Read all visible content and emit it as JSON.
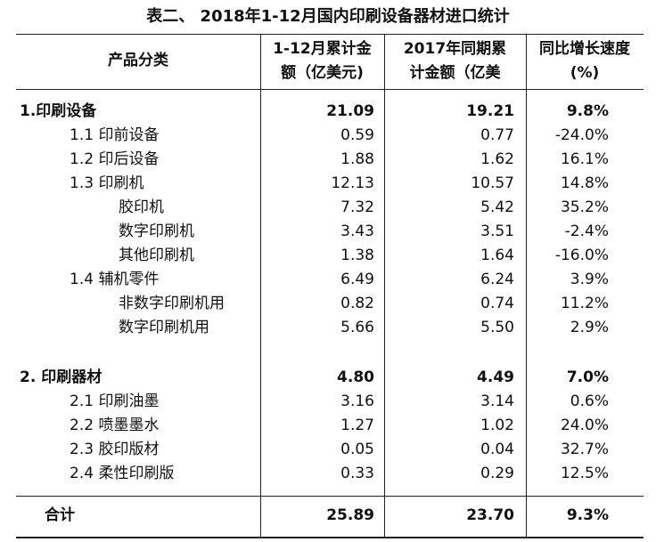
{
  "header": {
    "title": "表二、 2018年1-12月国内印刷设备器材进口统计"
  },
  "table": {
    "columns": [
      [
        "产品分类"
      ],
      [
        "1-12月累计金",
        "额（亿美元)"
      ],
      [
        "2017年同期累",
        "计金额（亿美"
      ],
      [
        "同比增长速度",
        "(%)"
      ]
    ],
    "rows": [
      [
        "1.印刷设备",
        "21.09",
        "19.21",
        "9.8%"
      ],
      [
        "1.1 印前设备",
        "0.59",
        "0.77",
        "-24.0%"
      ],
      [
        "1.2 印后设备",
        "1.88",
        "1.62",
        "16.1%"
      ],
      [
        "1.3 印刷机",
        "12.13",
        "10.57",
        "14.8%"
      ],
      [
        "胶印机",
        "7.32",
        "5.42",
        "35.2%"
      ],
      [
        "数字印刷机",
        "3.43",
        "3.51",
        "-2.4%"
      ],
      [
        "其他印刷机",
        "1.38",
        "1.64",
        "-16.0%"
      ],
      [
        "1.4  辅机零件",
        "6.49",
        "6.24",
        "3.9%"
      ],
      [
        "非数字印刷机用",
        "0.82",
        "0.74",
        "11.2%"
      ],
      [
        "数字印刷机用",
        "5.66",
        "5.50",
        "2.9%"
      ],
      [
        "2. 印刷器材",
        "4.80",
        "4.49",
        "7.0%"
      ],
      [
        "2.1 印刷油墨",
        "3.16",
        "3.14",
        "0.6%"
      ],
      [
        "2.2 喷墨墨水",
        "1.27",
        "1.02",
        "24.0%"
      ],
      [
        "2.3 胶印版材",
        "0.05",
        "0.04",
        "32.7%"
      ],
      [
        "2.4 柔性印刷版",
        "0.33",
        "0.29",
        "12.5%"
      ],
      [
        "合计",
        "25.89",
        "23.70",
        "9.3%"
      ]
    ]
  }
}
